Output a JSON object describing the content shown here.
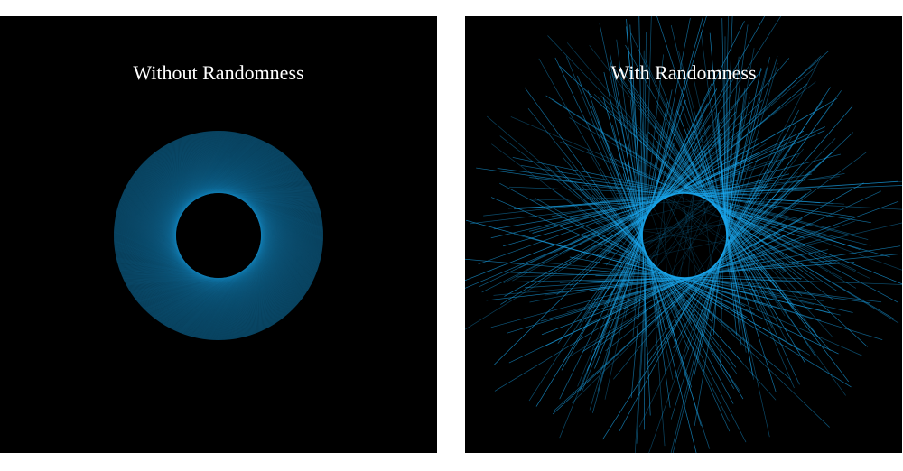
{
  "panels": {
    "left": {
      "title": "Without Randomness"
    },
    "right": {
      "title": "With Randomness"
    }
  },
  "colors": {
    "background": "#000000",
    "page": "#ffffff",
    "line": "#1aa3e8",
    "title": "#ffffff"
  }
}
